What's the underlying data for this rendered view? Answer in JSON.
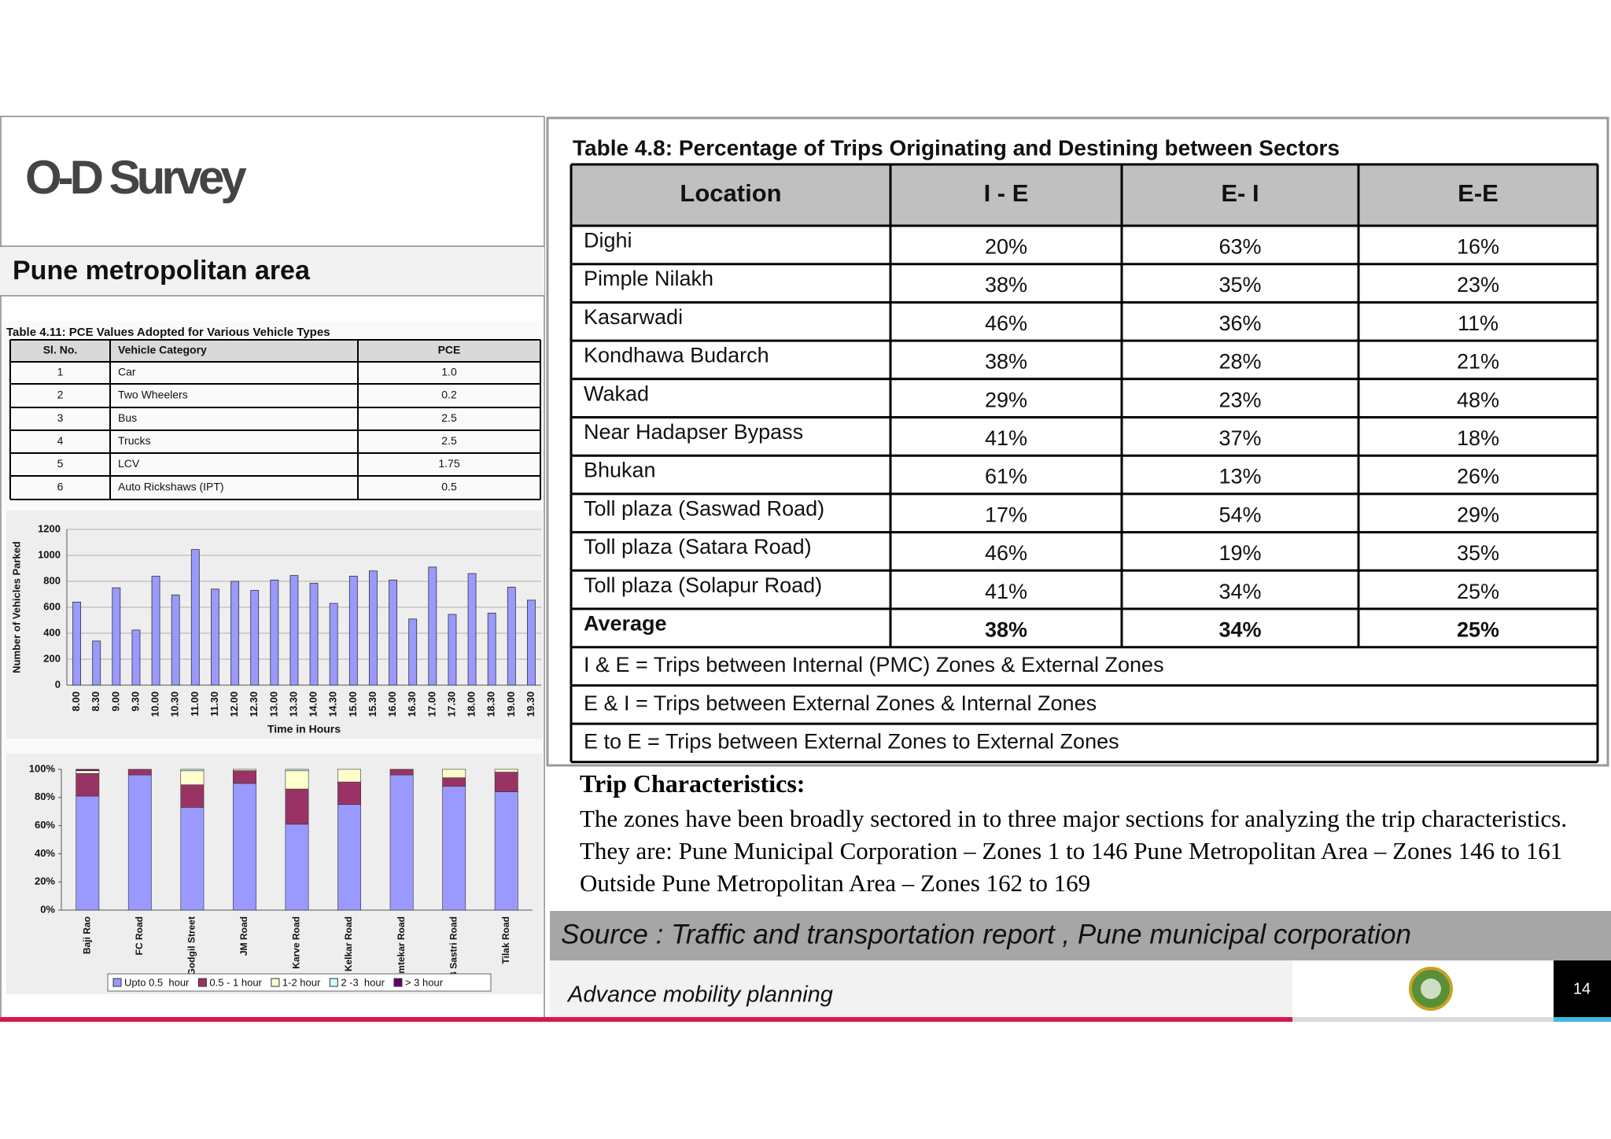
{
  "header": {
    "title": "O-D Survey",
    "subtitle": "Pune metropolitan area"
  },
  "pce_table": {
    "caption": "Table 4.11:  PCE Values Adopted for Various Vehicle Types",
    "columns": [
      "Sl. No.",
      "Vehicle Category",
      "PCE"
    ],
    "rows": [
      [
        "1",
        "Car",
        "1.0"
      ],
      [
        "2",
        "Two Wheelers",
        "0.2"
      ],
      [
        "3",
        "Bus",
        "2.5"
      ],
      [
        "4",
        "Trucks",
        "2.5"
      ],
      [
        "5",
        "LCV",
        "1.75"
      ],
      [
        "6",
        "Auto Rickshaws (IPT)",
        "0.5"
      ]
    ]
  },
  "chart_data": [
    {
      "type": "bar",
      "y_label": "Number of Vehicles Parked",
      "x_label": "Time in Hours",
      "categories": [
        "8.00",
        "8.30",
        "9.00",
        "9.30",
        "10.00",
        "10.30",
        "11.00",
        "11.30",
        "12.00",
        "12.30",
        "13.00",
        "13.30",
        "14.00",
        "14.30",
        "15.00",
        "15.30",
        "16.00",
        "16.30",
        "17.00",
        "17.30",
        "18.00",
        "18.30",
        "19.00",
        "19.30"
      ],
      "values": [
        640,
        340,
        750,
        425,
        840,
        695,
        1045,
        740,
        800,
        730,
        810,
        845,
        785,
        630,
        840,
        880,
        810,
        510,
        910,
        545,
        860,
        555,
        755,
        655
      ],
      "color": "#9999ff",
      "ylim": [
        0,
        1200
      ],
      "yticks": [
        0,
        200,
        400,
        600,
        800,
        1000,
        1200
      ],
      "grid": true
    },
    {
      "type": "stacked_bar",
      "categories": [
        "Baji Rao",
        "FC Road",
        "Godgil Street",
        "JM Road",
        "Karve Road",
        "Kelkar Road",
        "Kumtekar Road",
        "LB Sastri Road",
        "Tilak Road"
      ],
      "series": [
        {
          "name": "Upto 0.5  hour",
          "color": "#9999ff",
          "values": [
            81,
            96,
            73,
            90,
            61,
            75,
            96,
            88,
            84
          ]
        },
        {
          "name": "0.5 - 1 hour",
          "color": "#993366",
          "values": [
            16,
            4,
            16,
            9,
            25,
            16,
            4,
            6,
            14
          ]
        },
        {
          "name": "1-2 hour",
          "color": "#ffffcc",
          "values": [
            2,
            0,
            10,
            1,
            13,
            9,
            0,
            6,
            2
          ]
        },
        {
          "name": "2 -3  hour",
          "color": "#ccffff",
          "values": [
            0,
            0,
            1,
            0,
            1,
            0,
            0,
            0,
            0
          ]
        },
        {
          "name": "> 3 hour",
          "color": "#660066",
          "values": [
            1,
            0,
            0,
            0,
            0,
            0,
            0,
            0,
            0
          ]
        }
      ],
      "ylim": [
        0,
        100
      ],
      "yticks": [
        {
          "value": 0,
          "label": "0%"
        },
        {
          "value": 20,
          "label": "20%"
        },
        {
          "value": 40,
          "label": "40%"
        },
        {
          "value": 60,
          "label": "60%"
        },
        {
          "value": 80,
          "label": "80%"
        },
        {
          "value": 100,
          "label": "100%"
        }
      ],
      "legend": "bottom"
    }
  ],
  "od_table": {
    "caption": "Table 4.8: Percentage of Trips Originating and Destining between Sectors",
    "columns": [
      "Location",
      "I - E",
      "E- I",
      "E-E"
    ],
    "rows": [
      [
        "Dighi",
        "20%",
        "63%",
        "16%"
      ],
      [
        "Pimple Nilakh",
        "38%",
        "35%",
        "23%"
      ],
      [
        "Kasarwadi",
        "46%",
        "36%",
        "11%"
      ],
      [
        "Kondhawa Budarch",
        "38%",
        "28%",
        "21%"
      ],
      [
        "Wakad",
        "29%",
        "23%",
        "48%"
      ],
      [
        "Near Hadapser Bypass",
        "41%",
        "37%",
        "18%"
      ],
      [
        "Bhukan",
        "61%",
        "13%",
        "26%"
      ],
      [
        "Toll plaza (Saswad Road)",
        "17%",
        "54%",
        "29%"
      ],
      [
        "Toll plaza (Satara Road)",
        "46%",
        "19%",
        "35%"
      ],
      [
        "Toll plaza (Solapur Road)",
        "41%",
        "34%",
        "25%"
      ]
    ],
    "average": [
      "Average",
      "38%",
      "34%",
      "25%"
    ],
    "notes": [
      "I & E = Trips between Internal (PMC) Zones & External Zones",
      "E & I = Trips between External Zones & Internal Zones",
      "E to E  = Trips between External Zones to External Zones"
    ]
  },
  "trip_characteristics": {
    "heading": "Trip Characteristics:",
    "text": "The zones have been broadly sectored in to three major sections for analyzing the trip characteristics. They are: Pune Municipal Corporation – Zones 1 to 146 Pune Metropolitan Area – Zones 146 to 161 Outside Pune Metropolitan Area – Zones 162 to 169"
  },
  "source": "Source : Traffic and transportation report , Pune municipal corporation",
  "footer": {
    "text": "Advance mobility planning",
    "page": "14"
  }
}
